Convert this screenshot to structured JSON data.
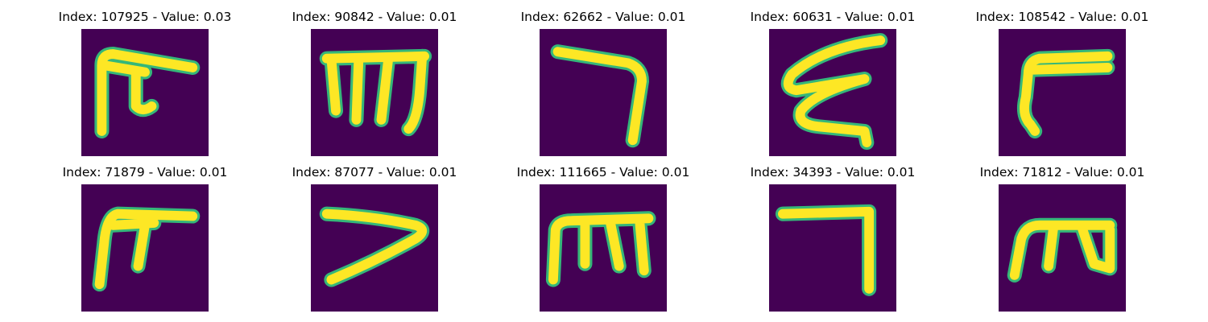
{
  "figure": {
    "background_color": "#440154",
    "stroke_color": "#fde725",
    "edge_color": "#35b779",
    "panels": [
      {
        "title": "Index: 107925 - Value: 0.03",
        "glyph_icon": "handwritten-glyph-f-like"
      },
      {
        "title": "Index: 90842 - Value: 0.01",
        "glyph_icon": "handwritten-glyph-m-like"
      },
      {
        "title": "Index: 62662 - Value: 0.01",
        "glyph_icon": "handwritten-glyph-7-like"
      },
      {
        "title": "Index: 60631 - Value: 0.01",
        "glyph_icon": "handwritten-glyph-zigzag"
      },
      {
        "title": "Index: 108542 - Value: 0.01",
        "glyph_icon": "handwritten-glyph-r-like"
      },
      {
        "title": "Index: 71879 - Value: 0.01",
        "glyph_icon": "handwritten-glyph-f-like"
      },
      {
        "title": "Index: 87077 - Value: 0.01",
        "glyph_icon": "handwritten-glyph-angle"
      },
      {
        "title": "Index: 111665 - Value: 0.01",
        "glyph_icon": "handwritten-glyph-m-like"
      },
      {
        "title": "Index: 34393 - Value: 0.01",
        "glyph_icon": "handwritten-glyph-7-like"
      },
      {
        "title": "Index: 71812 - Value: 0.01",
        "glyph_icon": "handwritten-glyph-m-like"
      }
    ]
  }
}
